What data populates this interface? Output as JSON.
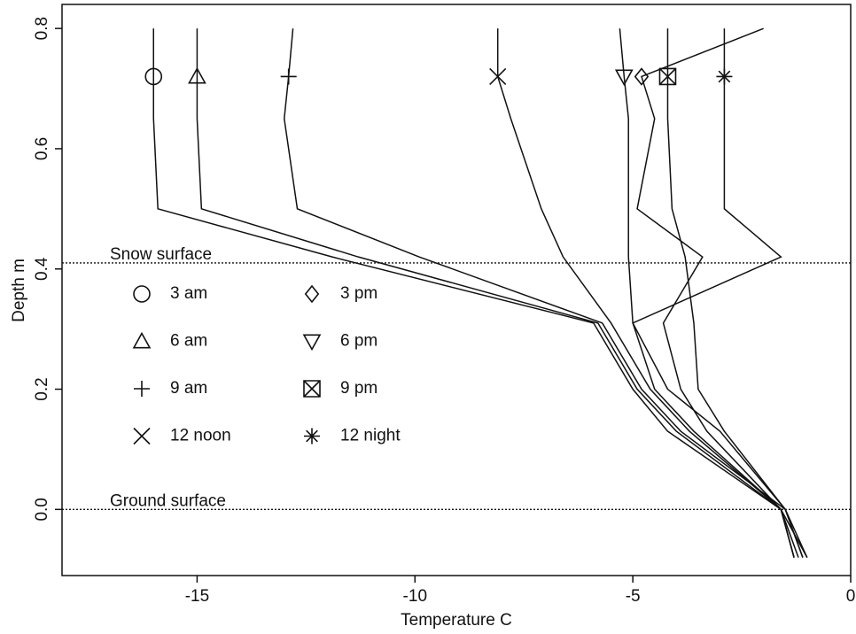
{
  "chart_data": {
    "type": "line",
    "x_label": "Temperature  C",
    "y_label": "Depth  m",
    "xlim": [
      -18.1,
      0
    ],
    "ylim": [
      -0.11,
      0.84
    ],
    "xticks": [
      -15,
      -10,
      -5,
      0
    ],
    "yticks": [
      {
        "value": 0,
        "label": "0.0"
      },
      0.2,
      0.4,
      0.6,
      0.8
    ],
    "color": "#111",
    "reference_lines": [
      {
        "value": 0.41,
        "label": "Snow surface"
      },
      {
        "value": 0,
        "label": "Ground surface"
      }
    ],
    "y": [
      0.8,
      0.72,
      0.65,
      0.5,
      0.42,
      0.31,
      0.2,
      0.13,
      0,
      -0.08
    ],
    "marker_index": 1,
    "series": [
      {
        "name": "3 am",
        "marker": "circle",
        "x": [
          -16.0,
          -16.0,
          -16.0,
          -15.9,
          -11.9,
          -5.9,
          -5.0,
          -4.2,
          -1.6,
          -1.3
        ]
      },
      {
        "name": "6 am",
        "marker": "triangle",
        "x": [
          -15.0,
          -15.0,
          -15.0,
          -14.9,
          -11.3,
          -5.8,
          -4.9,
          -4.0,
          -1.6,
          -1.2
        ]
      },
      {
        "name": "9 am",
        "marker": "plus",
        "x": [
          -12.8,
          -12.9,
          -13.0,
          -12.7,
          -9.9,
          -5.7,
          -4.8,
          -3.9,
          -1.5,
          -1.1
        ]
      },
      {
        "name": "12 noon",
        "marker": "x",
        "x": [
          -8.1,
          -8.1,
          -7.8,
          -7.1,
          -6.6,
          -5.5,
          -4.6,
          -3.7,
          -1.6,
          -1.0
        ]
      },
      {
        "name": "3 pm",
        "marker": "diamond",
        "x": [
          -2.0,
          -4.8,
          -4.5,
          -4.9,
          -3.4,
          -4.3,
          -3.9,
          -3.3,
          -1.6,
          -1.3
        ]
      },
      {
        "name": "6 pm",
        "marker": "triangle-down",
        "x": [
          -5.3,
          -5.2,
          -5.1,
          -5.1,
          -5.1,
          -5.0,
          -4.5,
          -3.6,
          -1.6,
          -1.3
        ]
      },
      {
        "name": "9 pm",
        "marker": "square-x",
        "x": [
          -4.2,
          -4.2,
          -4.2,
          -4.1,
          -3.8,
          -3.6,
          -3.5,
          -2.9,
          -1.5,
          -1.1
        ]
      },
      {
        "name": "12 night",
        "marker": "asterisk",
        "x": [
          -2.9,
          -2.9,
          -2.9,
          -2.9,
          -1.6,
          -5.0,
          -4.2,
          -3.0,
          -1.5,
          -1.0
        ]
      }
    ]
  }
}
